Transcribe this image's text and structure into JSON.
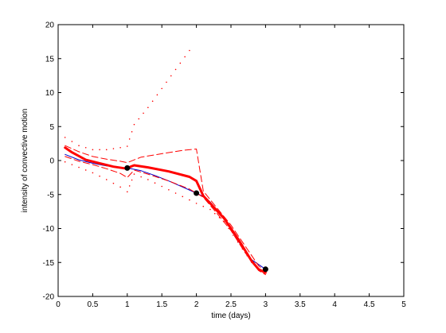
{
  "chart_data": {
    "type": "line",
    "title": "",
    "xlabel": "time (days)",
    "ylabel": "intensity of convective motion",
    "xlim": [
      0,
      5
    ],
    "ylim": [
      -20,
      20
    ],
    "xticks": [
      0,
      0.5,
      1,
      1.5,
      2,
      2.5,
      3,
      3.5,
      4,
      4.5,
      5
    ],
    "yticks": [
      -20,
      -15,
      -10,
      -5,
      0,
      5,
      10,
      15,
      20
    ],
    "xtick_labels": [
      "0",
      "0.5",
      "1",
      "1.5",
      "2",
      "2.5",
      "3",
      "3.5",
      "4",
      "4.5",
      "5"
    ],
    "ytick_labels": [
      "-20",
      "-15",
      "-10",
      "-5",
      "0",
      "5",
      "10",
      "15",
      "20"
    ],
    "grid": false,
    "legend": false,
    "series": [
      {
        "style": "thin-solid",
        "color": "#0000cc",
        "x": [
          0.1,
          0.3,
          0.5,
          0.7,
          0.9,
          1.0,
          1.2,
          1.4,
          1.6,
          1.8,
          2.0,
          2.1,
          2.2,
          2.4,
          2.6,
          2.8,
          3.0
        ],
        "y": [
          0.9,
          0.1,
          -0.4,
          -0.8,
          -1.0,
          -1.1,
          -1.5,
          -2.2,
          -3.0,
          -3.9,
          -4.8,
          -5.3,
          -6.1,
          -8.5,
          -11.8,
          -14.6,
          -16.0
        ]
      },
      {
        "style": "thick-solid",
        "color": "#ff0000",
        "x": [
          0.1,
          0.2,
          0.4,
          0.6,
          0.8,
          1.0,
          1.05,
          1.1,
          1.3,
          1.6,
          1.9,
          2.0,
          2.1,
          2.2,
          2.4,
          2.6,
          2.8,
          2.9,
          3.0
        ],
        "y": [
          1.9,
          1.2,
          0.1,
          -0.4,
          -0.9,
          -1.2,
          -0.9,
          -0.7,
          -1.0,
          -1.6,
          -2.4,
          -3.0,
          -5.2,
          -6.3,
          -8.5,
          -11.5,
          -14.8,
          -16.0,
          -16.5
        ]
      },
      {
        "style": "dashed-upper",
        "color": "#ff0000",
        "x": [
          0.1,
          0.3,
          0.5,
          0.7,
          0.9,
          1.0,
          1.2,
          1.5,
          1.8,
          2.0,
          2.1,
          2.3,
          2.5,
          2.7,
          2.9,
          3.0
        ],
        "y": [
          2.2,
          1.3,
          0.6,
          0.2,
          -0.1,
          -0.3,
          0.5,
          1.0,
          1.5,
          1.7,
          -4.5,
          -7.0,
          -9.5,
          -12.5,
          -15.5,
          -16.3
        ]
      },
      {
        "style": "dashed-lower",
        "color": "#ff0000",
        "x": [
          0.1,
          0.3,
          0.5,
          0.7,
          0.9,
          1.0,
          1.1,
          1.3,
          1.6,
          1.9,
          2.1,
          2.3,
          2.5,
          2.7,
          2.9,
          3.0
        ],
        "y": [
          0.6,
          -0.1,
          -0.6,
          -1.2,
          -1.9,
          -2.5,
          -1.4,
          -2.0,
          -3.0,
          -4.2,
          -5.4,
          -7.8,
          -10.3,
          -13.5,
          -16.2,
          -16.8
        ]
      },
      {
        "style": "dotted-upper",
        "color": "#ff0000",
        "x": [
          0.1,
          0.3,
          0.5,
          0.7,
          0.9,
          1.0,
          1.1,
          1.3,
          1.5,
          1.7,
          1.9,
          2.0
        ],
        "y": [
          3.4,
          2.2,
          1.6,
          1.6,
          1.9,
          2.1,
          5.3,
          7.8,
          10.6,
          13.4,
          16.2,
          17.3
        ]
      },
      {
        "style": "dotted-lower",
        "color": "#ff0000",
        "x": [
          0.1,
          0.3,
          0.5,
          0.7,
          0.9,
          1.0,
          1.1,
          1.3,
          1.5,
          1.7,
          1.9,
          2.0,
          2.2,
          2.4,
          2.6,
          2.8,
          3.0
        ],
        "y": [
          -0.2,
          -1.0,
          -1.8,
          -2.8,
          -3.9,
          -4.6,
          -2.0,
          -2.8,
          -3.8,
          -4.8,
          -5.8,
          -6.3,
          -7.2,
          -9.0,
          -12.0,
          -15.0,
          -17.0
        ]
      }
    ],
    "markers": {
      "color": "#000000",
      "x": [
        1,
        2,
        3
      ],
      "y": [
        -1.1,
        -4.8,
        -16.0
      ]
    }
  }
}
